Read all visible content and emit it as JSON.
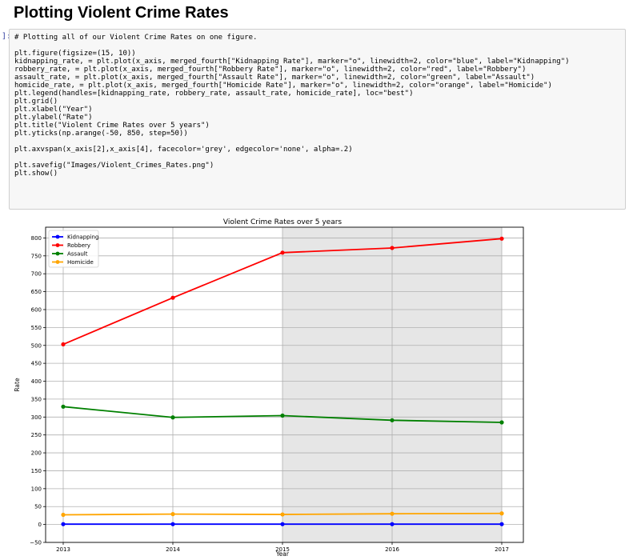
{
  "cell": {
    "heading": "Plotting Violent Crime Rates",
    "prompt": "]:",
    "code_lines": [
      "# Plotting all of our Violent Crime Rates on one figure.",
      "",
      "plt.figure(figsize=(15, 10))",
      "kidnapping_rate, = plt.plot(x_axis, merged_fourth[\"Kidnapping Rate\"], marker=\"o\", linewidth=2, color=\"blue\", label=\"Kidnapping\")",
      "robbery_rate, = plt.plot(x_axis, merged_fourth[\"Robbery Rate\"], marker=\"o\", linewidth=2, color=\"red\", label=\"Robbery\")",
      "assault_rate, = plt.plot(x_axis, merged_fourth[\"Assault Rate\"], marker=\"o\", linewidth=2, color=\"green\", label=\"Assault\")",
      "homicide_rate, = plt.plot(x_axis, merged_fourth[\"Homicide Rate\"], marker=\"o\", linewidth=2, color=\"orange\", label=\"Homicide\")",
      "plt.legend(handles=[kidnapping_rate, robbery_rate, assault_rate, homicide_rate], loc=\"best\")",
      "plt.grid()",
      "plt.xlabel(\"Year\")",
      "plt.ylabel(\"Rate\")",
      "plt.title(\"Violent Crime Rates over 5 years\")",
      "plt.yticks(np.arange(-50, 850, step=50))",
      "",
      "plt.axvspan(x_axis[2],x_axis[4], facecolor='grey', edgecolor='none', alpha=.2)",
      "",
      "plt.savefig(\"Images/Violent_Crimes_Rates.png\")",
      "plt.show()"
    ]
  },
  "chart_data": {
    "type": "line",
    "title": "Violent Crime Rates over 5 years",
    "xlabel": "Year",
    "ylabel": "Rate",
    "x": [
      "2013",
      "2014",
      "2015",
      "2016",
      "2017"
    ],
    "yticks": [
      -50,
      0,
      50,
      100,
      150,
      200,
      250,
      300,
      350,
      400,
      450,
      500,
      550,
      600,
      650,
      700,
      750,
      800
    ],
    "ylim": [
      -50,
      830
    ],
    "grid": true,
    "legend_position": "top-left",
    "shaded_span": {
      "from": "2015",
      "to": "2017",
      "color": "grey",
      "alpha": 0.2
    },
    "series": [
      {
        "name": "Kidnapping",
        "color": "#0000ff",
        "values": [
          1,
          1,
          1,
          1,
          1
        ]
      },
      {
        "name": "Robbery",
        "color": "#ff0000",
        "values": [
          503,
          633,
          759,
          772,
          798
        ]
      },
      {
        "name": "Assault",
        "color": "#008000",
        "values": [
          329,
          299,
          304,
          291,
          285
        ]
      },
      {
        "name": "Homicide",
        "color": "#ffa500",
        "values": [
          27,
          29,
          28,
          30,
          31
        ]
      }
    ]
  }
}
